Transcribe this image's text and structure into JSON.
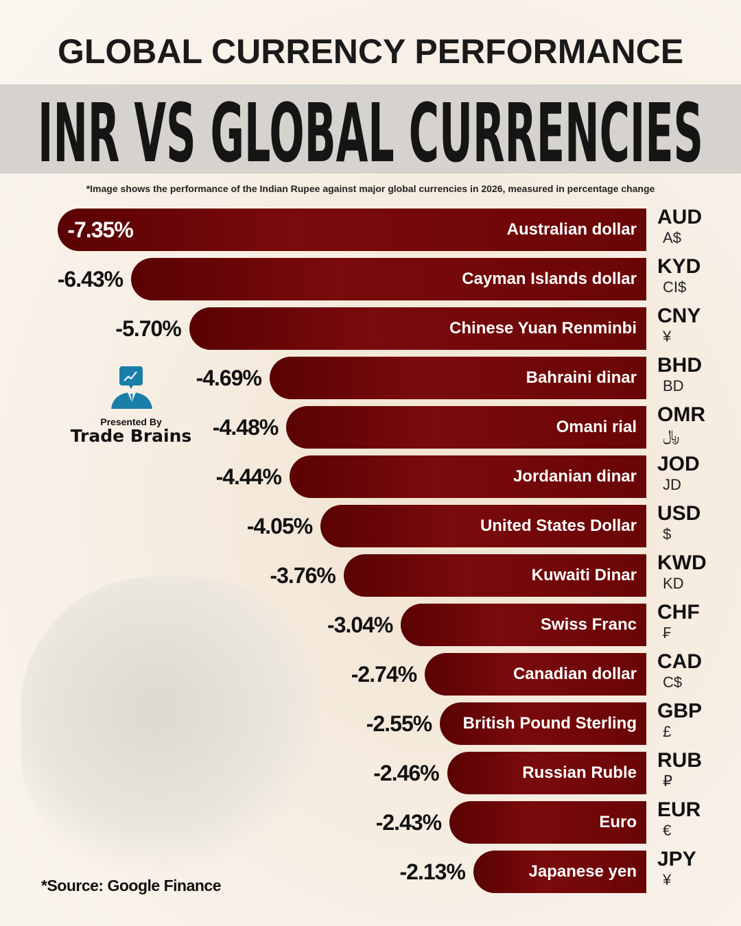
{
  "header": {
    "title": "GLOBAL CURRENCY PERFORMANCE",
    "banner": "INR VS GLOBAL CURRENCIES",
    "note": "*Image shows the performance of the Indian Rupee against major global currencies in 2026, measured in percentage change"
  },
  "branding": {
    "presented_by": "Presented By",
    "brand": "Trade Brains",
    "icon": "analyst-chart-icon",
    "color": "#1a7fa8"
  },
  "source": "*Source: Google Finance",
  "colors": {
    "bar": "#6a0506",
    "background": "#f6efe6"
  },
  "chart_data": {
    "type": "bar",
    "orientation": "horizontal",
    "title": "INR VS GLOBAL CURRENCIES",
    "unit": "%",
    "categories": [
      "Australian dollar",
      "Cayman Islands dollar",
      "Chinese Yuan Renminbi",
      "Bahraini dinar",
      "Omani rial",
      "Jordanian dinar",
      "United States Dollar",
      "Kuwaiti Dinar",
      "Swiss Franc",
      "Canadian dollar",
      "British Pound Sterling",
      "Russian Ruble",
      "Euro",
      "Japanese yen"
    ],
    "codes": [
      "AUD",
      "KYD",
      "CNY",
      "BHD",
      "OMR",
      "JOD",
      "USD",
      "KWD",
      "CHF",
      "CAD",
      "GBP",
      "RUB",
      "EUR",
      "JPY"
    ],
    "symbols": [
      "A$",
      "CI$",
      "¥",
      "BD",
      "﷼",
      "JD",
      "$",
      "KD",
      "₣",
      "C$",
      "£",
      "₽",
      "€",
      "¥"
    ],
    "values": [
      -7.35,
      -6.43,
      -5.7,
      -4.69,
      -4.48,
      -4.44,
      -4.05,
      -3.76,
      -3.04,
      -2.74,
      -2.55,
      -2.46,
      -2.43,
      -2.13
    ],
    "labels": [
      "-7.35%",
      "-6.43%",
      "-5.70%",
      "-4.69%",
      "-4.48%",
      "-4.44%",
      "-4.05%",
      "-3.76%",
      "-3.04%",
      "-2.74%",
      "-2.55%",
      "-2.46%",
      "-2.43%",
      "-2.13%"
    ]
  }
}
